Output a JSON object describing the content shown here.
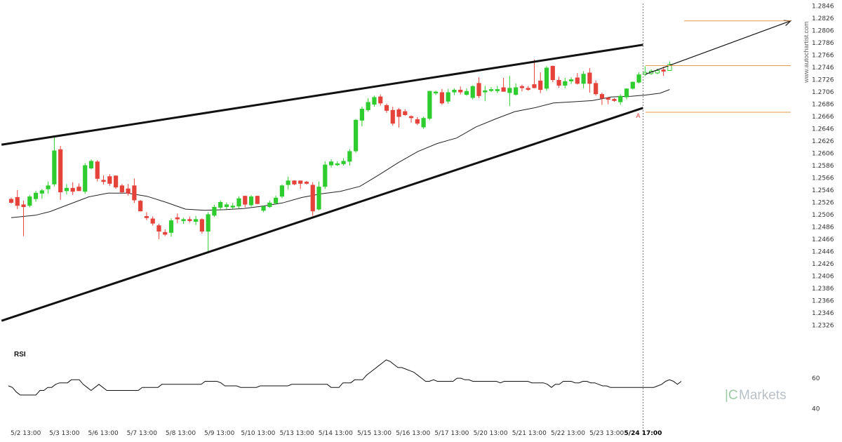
{
  "colors": {
    "bull": "#2ecc2e",
    "bear": "#e5423b",
    "pattern_line": "#111111",
    "level_line": "#e69a4a",
    "ma_line": "#222222",
    "rsi_line": "#111111",
    "grid_text": "#333333"
  },
  "watermark": "www.autochartist.com",
  "brand": {
    "logo": "|C",
    "name": "Markets"
  },
  "marker_label": "A",
  "chart_data": [
    {
      "type": "candlestick",
      "title": "",
      "xlabel": "",
      "ylabel": "",
      "ylim": [
        1.2316,
        1.2848
      ],
      "y_ticks": [
        "1.2846",
        "1.2826",
        "1.2806",
        "1.2786",
        "1.2766",
        "1.2746",
        "1.2726",
        "1.2706",
        "1.2686",
        "1.2666",
        "1.2646",
        "1.2626",
        "1.2606",
        "1.2586",
        "1.2566",
        "1.2546",
        "1.2526",
        "1.2506",
        "1.2486",
        "1.2466",
        "1.2446",
        "1.2426",
        "1.2406",
        "1.2386",
        "1.2366",
        "1.2346",
        "1.2326"
      ],
      "x_ticks": [
        "5/2 13:00",
        "5/3 13:00",
        "5/6 13:00",
        "5/7 13:00",
        "5/8 13:00",
        "5/9 13:00",
        "5/10 13:00",
        "5/13 13:00",
        "5/14 13:00",
        "5/15 13:00",
        "5/16 13:00",
        "5/17 13:00",
        "5/20 13:00",
        "5/21 13:00",
        "5/22 13:00",
        "5/23 13:00",
        "5/24 17:00"
      ],
      "x_tick_index": [
        3,
        11,
        19,
        27,
        35,
        43,
        51,
        59,
        67,
        75,
        83,
        91,
        99,
        107,
        115,
        123,
        130.5
      ],
      "focus_tick": "5/24 17:00",
      "n_bars": 137,
      "candles": [
        {
          "o": 1.2531,
          "h": 1.2534,
          "l": 1.2524,
          "c": 1.2526
        },
        {
          "o": 1.2534,
          "h": 1.2546,
          "l": 1.2515,
          "c": 1.2521
        },
        {
          "o": 1.2522,
          "h": 1.2529,
          "l": 1.2471,
          "c": 1.2519
        },
        {
          "o": 1.2521,
          "h": 1.2538,
          "l": 1.2518,
          "c": 1.2535
        },
        {
          "o": 1.2532,
          "h": 1.2545,
          "l": 1.2527,
          "c": 1.2541
        },
        {
          "o": 1.2541,
          "h": 1.2548,
          "l": 1.2532,
          "c": 1.2545
        },
        {
          "o": 1.2548,
          "h": 1.256,
          "l": 1.254,
          "c": 1.2553
        },
        {
          "o": 1.2556,
          "h": 1.2635,
          "l": 1.2552,
          "c": 1.261
        },
        {
          "o": 1.2612,
          "h": 1.2618,
          "l": 1.253,
          "c": 1.2543
        },
        {
          "o": 1.2545,
          "h": 1.2556,
          "l": 1.2539,
          "c": 1.2549
        },
        {
          "o": 1.2549,
          "h": 1.2559,
          "l": 1.2538,
          "c": 1.2544
        },
        {
          "o": 1.2551,
          "h": 1.2557,
          "l": 1.2545,
          "c": 1.2545
        },
        {
          "o": 1.2544,
          "h": 1.259,
          "l": 1.254,
          "c": 1.2586
        },
        {
          "o": 1.2582,
          "h": 1.2596,
          "l": 1.258,
          "c": 1.2593
        },
        {
          "o": 1.2592,
          "h": 1.2595,
          "l": 1.256,
          "c": 1.2565
        },
        {
          "o": 1.2562,
          "h": 1.257,
          "l": 1.2555,
          "c": 1.256
        },
        {
          "o": 1.2568,
          "h": 1.2572,
          "l": 1.2553,
          "c": 1.2557
        },
        {
          "o": 1.2569,
          "h": 1.257,
          "l": 1.2548,
          "c": 1.2551
        },
        {
          "o": 1.2553,
          "h": 1.2556,
          "l": 1.254,
          "c": 1.2543
        },
        {
          "o": 1.2548,
          "h": 1.2556,
          "l": 1.2537,
          "c": 1.2541
        },
        {
          "o": 1.2553,
          "h": 1.2565,
          "l": 1.2525,
          "c": 1.253
        },
        {
          "o": 1.2528,
          "h": 1.253,
          "l": 1.2511,
          "c": 1.2512
        },
        {
          "o": 1.2503,
          "h": 1.251,
          "l": 1.2497,
          "c": 1.2501
        },
        {
          "o": 1.2499,
          "h": 1.2503,
          "l": 1.2488,
          "c": 1.2492
        },
        {
          "o": 1.2488,
          "h": 1.2491,
          "l": 1.2466,
          "c": 1.2479
        },
        {
          "o": 1.2477,
          "h": 1.2482,
          "l": 1.2471,
          "c": 1.2474
        },
        {
          "o": 1.2477,
          "h": 1.25,
          "l": 1.247,
          "c": 1.2496
        },
        {
          "o": 1.2501,
          "h": 1.2508,
          "l": 1.2492,
          "c": 1.2499
        },
        {
          "o": 1.2496,
          "h": 1.2501,
          "l": 1.2491,
          "c": 1.2498
        },
        {
          "o": 1.2498,
          "h": 1.2503,
          "l": 1.2493,
          "c": 1.2497
        },
        {
          "o": 1.2495,
          "h": 1.2504,
          "l": 1.2489,
          "c": 1.2498
        },
        {
          "o": 1.2498,
          "h": 1.25,
          "l": 1.2475,
          "c": 1.2479
        },
        {
          "o": 1.2479,
          "h": 1.251,
          "l": 1.2444,
          "c": 1.2506
        },
        {
          "o": 1.2505,
          "h": 1.2522,
          "l": 1.2502,
          "c": 1.2518
        },
        {
          "o": 1.2518,
          "h": 1.2529,
          "l": 1.2514,
          "c": 1.2526
        },
        {
          "o": 1.2519,
          "h": 1.2526,
          "l": 1.2515,
          "c": 1.2522
        },
        {
          "o": 1.252,
          "h": 1.2525,
          "l": 1.2515,
          "c": 1.252
        },
        {
          "o": 1.252,
          "h": 1.2536,
          "l": 1.2516,
          "c": 1.2532
        },
        {
          "o": 1.2536,
          "h": 1.2537,
          "l": 1.2518,
          "c": 1.2523
        },
        {
          "o": 1.2522,
          "h": 1.2538,
          "l": 1.2519,
          "c": 1.2535
        },
        {
          "o": 1.2536,
          "h": 1.2537,
          "l": 1.2523,
          "c": 1.2524
        },
        {
          "o": 1.2513,
          "h": 1.2521,
          "l": 1.251,
          "c": 1.2519
        },
        {
          "o": 1.2519,
          "h": 1.2529,
          "l": 1.2517,
          "c": 1.2525
        },
        {
          "o": 1.2525,
          "h": 1.2537,
          "l": 1.2522,
          "c": 1.2533
        },
        {
          "o": 1.2536,
          "h": 1.2555,
          "l": 1.2533,
          "c": 1.2553
        },
        {
          "o": 1.2555,
          "h": 1.2568,
          "l": 1.2547,
          "c": 1.2561
        },
        {
          "o": 1.2561,
          "h": 1.2562,
          "l": 1.2554,
          "c": 1.2556
        },
        {
          "o": 1.2561,
          "h": 1.2561,
          "l": 1.2548,
          "c": 1.2557
        },
        {
          "o": 1.2559,
          "h": 1.2561,
          "l": 1.2555,
          "c": 1.2557
        },
        {
          "o": 1.2554,
          "h": 1.2559,
          "l": 1.2504,
          "c": 1.2512
        },
        {
          "o": 1.2515,
          "h": 1.256,
          "l": 1.2513,
          "c": 1.2551
        },
        {
          "o": 1.2552,
          "h": 1.2593,
          "l": 1.2548,
          "c": 1.2587
        },
        {
          "o": 1.2587,
          "h": 1.2596,
          "l": 1.2583,
          "c": 1.2592
        },
        {
          "o": 1.2589,
          "h": 1.2593,
          "l": 1.2585,
          "c": 1.2589
        },
        {
          "o": 1.2589,
          "h": 1.2598,
          "l": 1.2586,
          "c": 1.2593
        },
        {
          "o": 1.2593,
          "h": 1.2613,
          "l": 1.2586,
          "c": 1.2609
        },
        {
          "o": 1.261,
          "h": 1.2662,
          "l": 1.2607,
          "c": 1.266
        },
        {
          "o": 1.266,
          "h": 1.2682,
          "l": 1.265,
          "c": 1.2678
        },
        {
          "o": 1.2677,
          "h": 1.2696,
          "l": 1.2674,
          "c": 1.2689
        },
        {
          "o": 1.2686,
          "h": 1.27,
          "l": 1.2682,
          "c": 1.2697
        },
        {
          "o": 1.2698,
          "h": 1.2702,
          "l": 1.2684,
          "c": 1.2688
        },
        {
          "o": 1.2684,
          "h": 1.2687,
          "l": 1.2672,
          "c": 1.2676
        },
        {
          "o": 1.2676,
          "h": 1.2682,
          "l": 1.2651,
          "c": 1.2655
        },
        {
          "o": 1.2677,
          "h": 1.268,
          "l": 1.2648,
          "c": 1.2666
        },
        {
          "o": 1.2674,
          "h": 1.2678,
          "l": 1.2667,
          "c": 1.2669
        },
        {
          "o": 1.2666,
          "h": 1.2668,
          "l": 1.2656,
          "c": 1.2664
        },
        {
          "o": 1.2661,
          "h": 1.2665,
          "l": 1.2652,
          "c": 1.2655
        },
        {
          "o": 1.2649,
          "h": 1.2666,
          "l": 1.2646,
          "c": 1.2663
        },
        {
          "o": 1.2663,
          "h": 1.2708,
          "l": 1.266,
          "c": 1.2707
        },
        {
          "o": 1.2705,
          "h": 1.2708,
          "l": 1.2701,
          "c": 1.2706
        },
        {
          "o": 1.2705,
          "h": 1.2711,
          "l": 1.2685,
          "c": 1.2688
        },
        {
          "o": 1.2691,
          "h": 1.2711,
          "l": 1.2687,
          "c": 1.2705
        },
        {
          "o": 1.2706,
          "h": 1.2712,
          "l": 1.2701,
          "c": 1.2709
        },
        {
          "o": 1.2709,
          "h": 1.2715,
          "l": 1.2702,
          "c": 1.2706
        },
        {
          "o": 1.2702,
          "h": 1.2712,
          "l": 1.27,
          "c": 1.2707
        },
        {
          "o": 1.2697,
          "h": 1.2717,
          "l": 1.2694,
          "c": 1.2715
        },
        {
          "o": 1.272,
          "h": 1.273,
          "l": 1.2696,
          "c": 1.27
        },
        {
          "o": 1.2706,
          "h": 1.2716,
          "l": 1.2691,
          "c": 1.2708
        },
        {
          "o": 1.271,
          "h": 1.2714,
          "l": 1.2706,
          "c": 1.271
        },
        {
          "o": 1.2708,
          "h": 1.2716,
          "l": 1.2704,
          "c": 1.271
        },
        {
          "o": 1.2713,
          "h": 1.2729,
          "l": 1.2708,
          "c": 1.2707
        },
        {
          "o": 1.2705,
          "h": 1.2732,
          "l": 1.2683,
          "c": 1.2712
        },
        {
          "o": 1.2702,
          "h": 1.272,
          "l": 1.27,
          "c": 1.2713
        },
        {
          "o": 1.2715,
          "h": 1.2718,
          "l": 1.2707,
          "c": 1.2713
        },
        {
          "o": 1.2712,
          "h": 1.2716,
          "l": 1.2708,
          "c": 1.271
        },
        {
          "o": 1.2718,
          "h": 1.2759,
          "l": 1.2712,
          "c": 1.2713
        },
        {
          "o": 1.2724,
          "h": 1.2738,
          "l": 1.2704,
          "c": 1.271
        },
        {
          "o": 1.2712,
          "h": 1.2748,
          "l": 1.2708,
          "c": 1.2745
        },
        {
          "o": 1.2748,
          "h": 1.2749,
          "l": 1.2722,
          "c": 1.2726
        },
        {
          "o": 1.2725,
          "h": 1.2731,
          "l": 1.2713,
          "c": 1.2717
        },
        {
          "o": 1.2717,
          "h": 1.2729,
          "l": 1.2712,
          "c": 1.2723
        },
        {
          "o": 1.2724,
          "h": 1.273,
          "l": 1.2719,
          "c": 1.2726
        },
        {
          "o": 1.2729,
          "h": 1.2737,
          "l": 1.2718,
          "c": 1.272
        },
        {
          "o": 1.272,
          "h": 1.274,
          "l": 1.2712,
          "c": 1.2735
        },
        {
          "o": 1.2737,
          "h": 1.2745,
          "l": 1.2705,
          "c": 1.272
        },
        {
          "o": 1.272,
          "h": 1.2725,
          "l": 1.27,
          "c": 1.2703
        },
        {
          "o": 1.2702,
          "h": 1.2705,
          "l": 1.2685,
          "c": 1.2696
        },
        {
          "o": 1.2696,
          "h": 1.2698,
          "l": 1.2686,
          "c": 1.2694
        },
        {
          "o": 1.2694,
          "h": 1.2696,
          "l": 1.269,
          "c": 1.2692
        },
        {
          "o": 1.269,
          "h": 1.2702,
          "l": 1.2685,
          "c": 1.2699
        },
        {
          "o": 1.2698,
          "h": 1.2712,
          "l": 1.2694,
          "c": 1.2711
        },
        {
          "o": 1.2712,
          "h": 1.2723,
          "l": 1.271,
          "c": 1.2722
        },
        {
          "o": 1.2722,
          "h": 1.2738,
          "l": 1.272,
          "c": 1.2734
        },
        {
          "o": 1.2735,
          "h": 1.2748,
          "l": 1.2732,
          "c": 1.2738
        },
        {
          "o": 1.2736,
          "h": 1.2743,
          "l": 1.2734,
          "c": 1.274
        },
        {
          "o": 1.2737,
          "h": 1.2744,
          "l": 1.2735,
          "c": 1.2741
        },
        {
          "o": 1.2742,
          "h": 1.2747,
          "l": 1.2732,
          "c": 1.274
        },
        {
          "o": 1.2741,
          "h": 1.2756,
          "l": 1.2741,
          "c": 1.2751
        }
      ],
      "candle_slot_start": 0,
      "candle_indices_note": "",
      "ma_period_points": [
        {
          "x": 0,
          "y": 1.2501
        },
        {
          "x": 5,
          "y": 1.2505
        },
        {
          "x": 8,
          "y": 1.2511
        },
        {
          "x": 12,
          "y": 1.2523
        },
        {
          "x": 16,
          "y": 1.2535
        },
        {
          "x": 20,
          "y": 1.2541
        },
        {
          "x": 24,
          "y": 1.2541
        },
        {
          "x": 28,
          "y": 1.2536
        },
        {
          "x": 32,
          "y": 1.2526
        },
        {
          "x": 36,
          "y": 1.2515
        },
        {
          "x": 40,
          "y": 1.2513
        },
        {
          "x": 44,
          "y": 1.2514
        },
        {
          "x": 48,
          "y": 1.2516
        },
        {
          "x": 52,
          "y": 1.252
        },
        {
          "x": 56,
          "y": 1.2525
        },
        {
          "x": 60,
          "y": 1.2534
        },
        {
          "x": 64,
          "y": 1.254
        },
        {
          "x": 68,
          "y": 1.2544
        },
        {
          "x": 72,
          "y": 1.2552
        },
        {
          "x": 76,
          "y": 1.2571
        },
        {
          "x": 80,
          "y": 1.2591
        },
        {
          "x": 84,
          "y": 1.2609
        },
        {
          "x": 88,
          "y": 1.2622
        },
        {
          "x": 92,
          "y": 1.2631
        },
        {
          "x": 96,
          "y": 1.2649
        },
        {
          "x": 100,
          "y": 1.2662
        },
        {
          "x": 104,
          "y": 1.2674
        },
        {
          "x": 108,
          "y": 1.268
        },
        {
          "x": 112,
          "y": 1.2688
        },
        {
          "x": 116,
          "y": 1.269
        },
        {
          "x": 120,
          "y": 1.2692
        },
        {
          "x": 124,
          "y": 1.2698
        },
        {
          "x": 128,
          "y": 1.2699
        },
        {
          "x": 131,
          "y": 1.2701
        },
        {
          "x": 134,
          "y": 1.2704
        },
        {
          "x": 136,
          "y": 1.271
        }
      ],
      "pattern_lines": [
        {
          "name": "resistance",
          "from": {
            "x": -2,
            "y": 1.262
          },
          "to": {
            "x": 130.5,
            "y": 1.2783
          }
        },
        {
          "name": "support",
          "from": {
            "x": -2,
            "y": 1.2333
          },
          "to": {
            "x": 130.5,
            "y": 1.268
          }
        }
      ],
      "projection": {
        "from": {
          "x": 131,
          "y": 1.2735
        },
        "to": {
          "x": 161,
          "y": 1.2822
        }
      },
      "levels": [
        {
          "name": "target",
          "y": 1.2822,
          "from_x": 139,
          "to_x": 161
        },
        {
          "name": "breakout",
          "y": 1.2749,
          "from_x": 131,
          "to_x": 161
        },
        {
          "name": "stop",
          "y": 1.2673,
          "from_x": 131,
          "to_x": 161
        }
      ],
      "focus_x": 130.5,
      "marker": {
        "x": 129.5,
        "y": 1.2666
      }
    },
    {
      "type": "line",
      "title": "RSI",
      "ylim": [
        32,
        78
      ],
      "y_ticks": [
        "60",
        "40"
      ],
      "values": [
        55,
        54,
        51,
        49,
        49,
        49,
        49,
        49,
        52,
        52,
        54,
        54,
        56,
        57,
        57,
        57,
        59,
        59,
        59,
        56,
        54,
        52,
        54,
        56,
        54,
        52,
        52,
        52,
        52,
        52,
        52,
        52,
        52,
        52,
        54,
        54,
        54,
        54,
        54,
        56,
        56,
        56,
        56,
        56,
        56,
        56,
        56,
        56,
        56,
        56,
        58,
        58,
        58,
        58,
        57,
        55,
        55,
        55,
        55,
        54,
        54,
        54,
        54,
        54,
        55,
        55,
        55,
        55,
        55,
        55,
        55,
        55,
        56,
        56,
        56,
        56,
        56,
        56,
        56,
        56,
        56,
        56,
        54,
        54,
        54,
        57,
        57,
        57,
        59,
        59,
        59,
        62,
        64,
        66,
        68,
        70,
        72,
        71,
        69,
        67,
        67,
        66,
        65,
        64,
        62,
        60,
        58,
        58,
        59,
        58,
        58,
        58,
        58,
        58,
        60,
        60,
        59,
        59,
        58,
        58,
        58,
        58,
        58,
        58,
        58,
        57,
        58,
        58,
        58,
        58,
        58,
        58,
        58,
        57,
        57,
        57,
        57,
        56,
        54,
        56,
        56,
        58,
        58,
        58,
        57,
        57,
        58,
        58,
        57,
        57,
        56,
        55,
        55,
        54,
        54,
        54,
        54,
        54,
        54,
        54,
        54,
        54,
        54,
        54,
        54,
        55,
        56,
        58,
        59,
        58,
        56,
        58
      ]
    }
  ]
}
